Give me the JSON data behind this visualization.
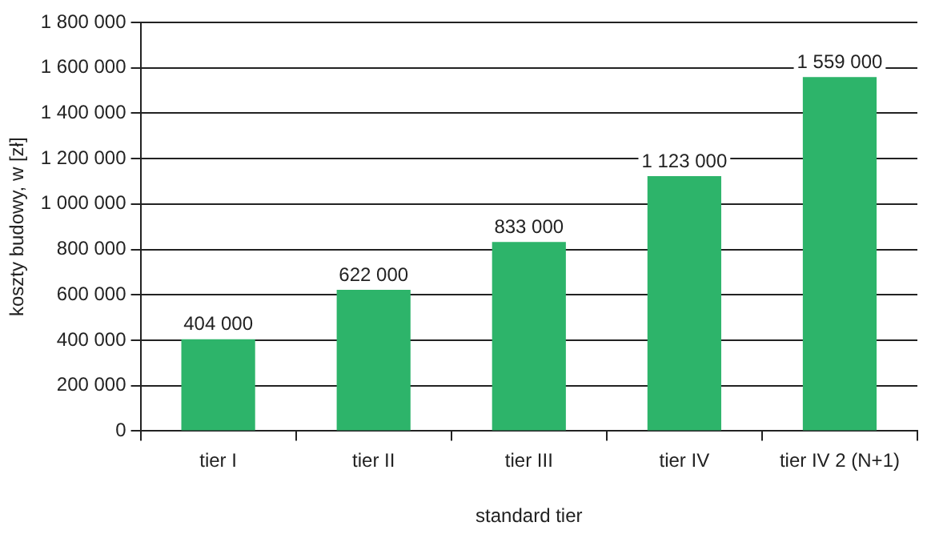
{
  "chart_data": {
    "type": "bar",
    "xlabel": "standard tier",
    "ylabel": "koszty budowy, w [zł]",
    "categories": [
      "tier I",
      "tier II",
      "tier III",
      "tier IV",
      "tier IV 2 (N+1)"
    ],
    "values": [
      404000,
      622000,
      833000,
      1123000,
      1559000
    ],
    "color": "#2db46a",
    "ylim": [
      0,
      1800000
    ],
    "yticks": [
      0,
      200000,
      400000,
      600000,
      800000,
      1000000,
      1200000,
      1400000,
      1600000,
      1800000
    ],
    "grid": "y",
    "data_labels": true
  }
}
